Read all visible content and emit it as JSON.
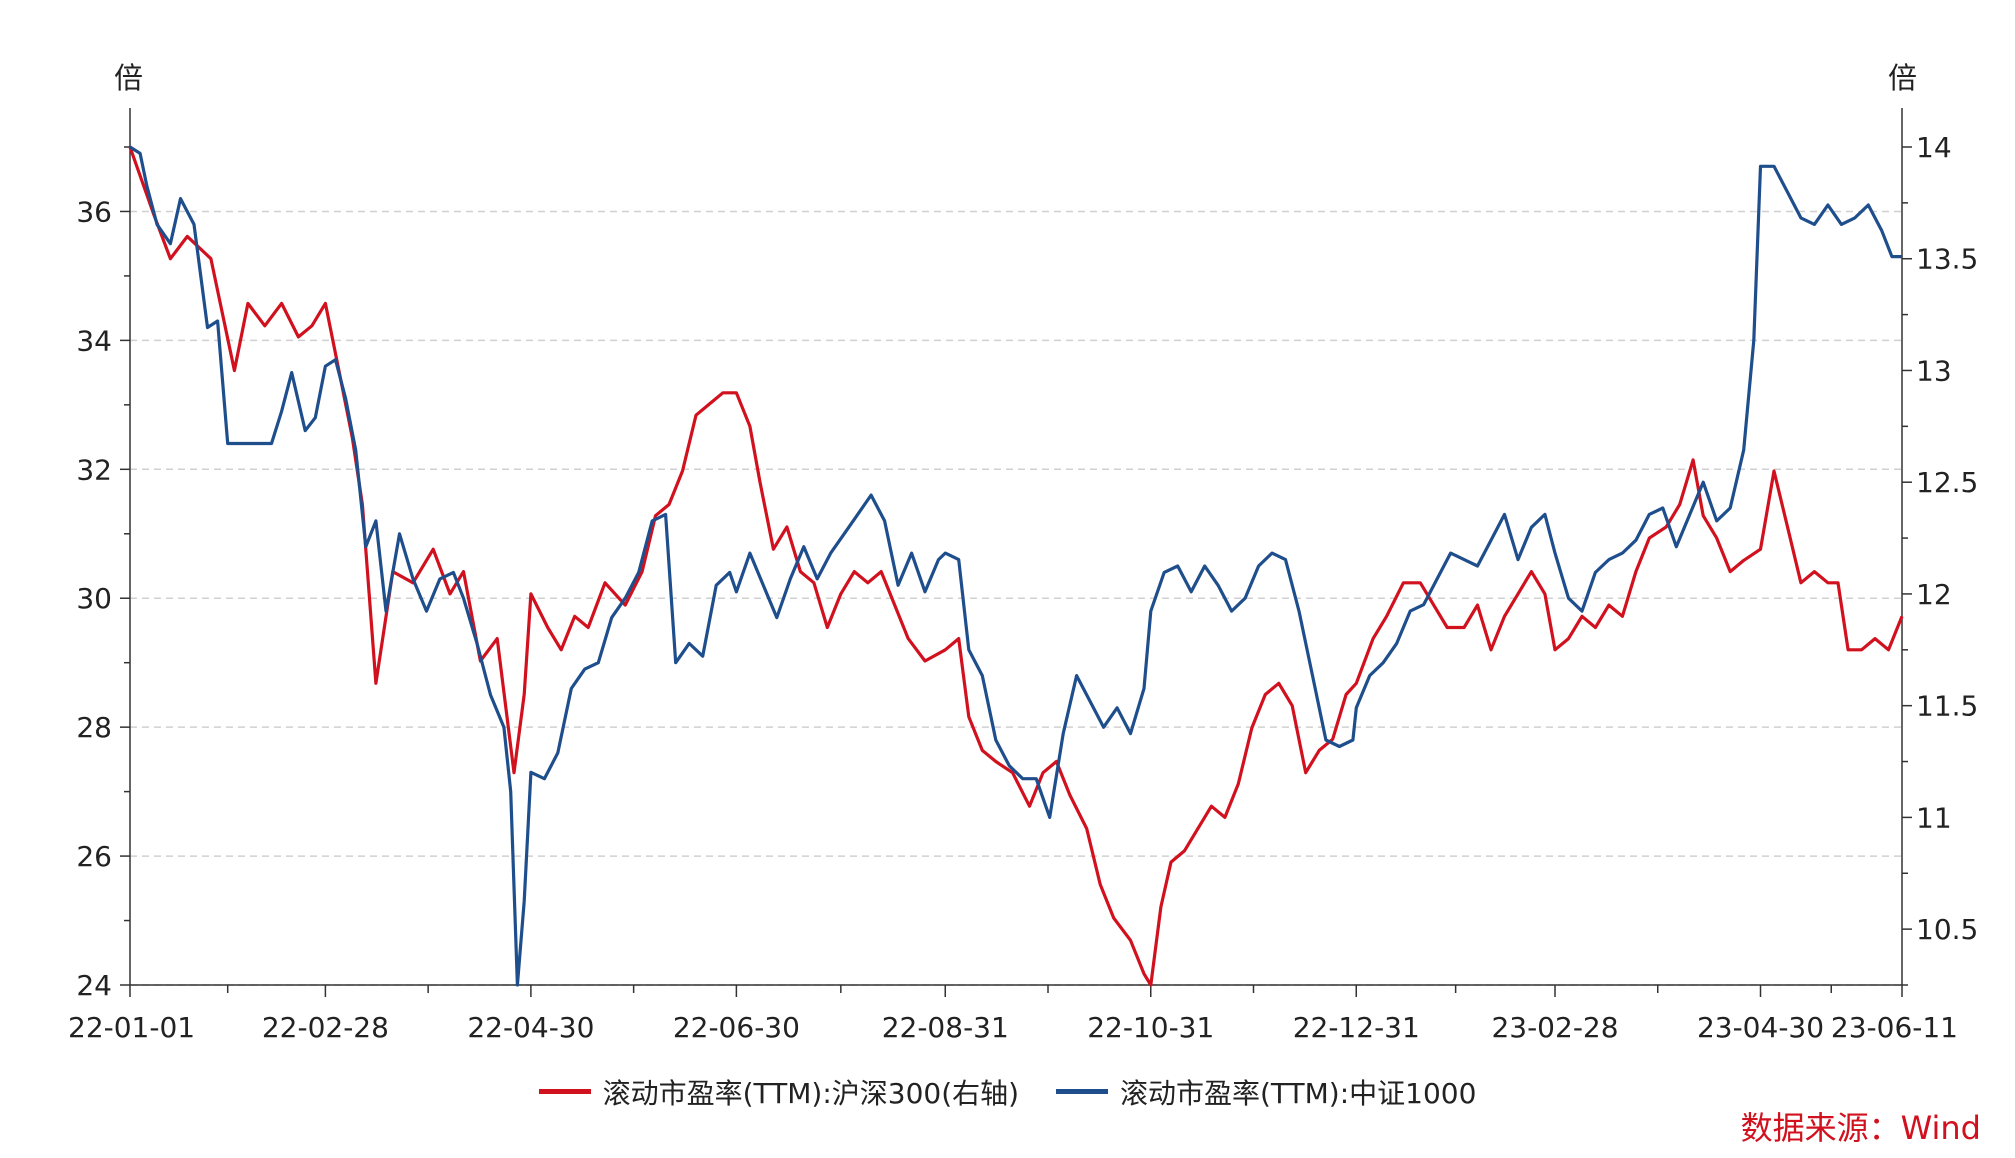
{
  "chart_data": {
    "type": "line",
    "left_axis_unit": "倍",
    "right_axis_unit": "倍",
    "x_ticks": [
      "22-01-01",
      "22-02-28",
      "22-04-30",
      "22-06-30",
      "22-08-31",
      "22-10-31",
      "22-12-31",
      "23-02-28",
      "23-04-30",
      "23-06-11"
    ],
    "ylim_left": [
      24,
      37
    ],
    "yticks_left": [
      24,
      26,
      28,
      30,
      32,
      34,
      36
    ],
    "ylim_right": [
      10.25,
      14
    ],
    "yticks_right": [
      "10.5",
      "11",
      "11.5",
      "12",
      "12.5",
      "13",
      "13.5",
      "14"
    ],
    "grid": "horizontal dashed",
    "legend_position": "bottom",
    "series": [
      {
        "name": "滚动市盈率(TTM):沪深300(右轴)",
        "axis": "right",
        "color": "#d2111f",
        "points": [
          [
            "22-01-01",
            14.0
          ],
          [
            "22-01-08",
            13.7
          ],
          [
            "22-01-13",
            13.5
          ],
          [
            "22-01-18",
            13.6
          ],
          [
            "22-01-25",
            13.5
          ],
          [
            "22-02-01",
            13.0
          ],
          [
            "22-02-05",
            13.3
          ],
          [
            "22-02-10",
            13.2
          ],
          [
            "22-02-15",
            13.3
          ],
          [
            "22-02-20",
            13.15
          ],
          [
            "22-02-24",
            13.2
          ],
          [
            "22-02-28",
            13.3
          ],
          [
            "22-03-04",
            13.0
          ],
          [
            "22-03-08",
            12.7
          ],
          [
            "22-03-11",
            12.4
          ],
          [
            "22-03-15",
            11.6
          ],
          [
            "22-03-20",
            12.1
          ],
          [
            "22-03-26",
            12.05
          ],
          [
            "22-04-01",
            12.2
          ],
          [
            "22-04-06",
            12.0
          ],
          [
            "22-04-10",
            12.1
          ],
          [
            "22-04-15",
            11.7
          ],
          [
            "22-04-20",
            11.8
          ],
          [
            "22-04-25",
            11.2
          ],
          [
            "22-04-28",
            11.55
          ],
          [
            "22-04-30",
            12.0
          ],
          [
            "22-05-05",
            11.85
          ],
          [
            "22-05-09",
            11.75
          ],
          [
            "22-05-13",
            11.9
          ],
          [
            "22-05-17",
            11.85
          ],
          [
            "22-05-22",
            12.05
          ],
          [
            "22-05-28",
            11.95
          ],
          [
            "22-06-02",
            12.1
          ],
          [
            "22-06-06",
            12.35
          ],
          [
            "22-06-10",
            12.4
          ],
          [
            "22-06-14",
            12.55
          ],
          [
            "22-06-18",
            12.8
          ],
          [
            "22-06-22",
            12.85
          ],
          [
            "22-06-26",
            12.9
          ],
          [
            "22-06-30",
            12.9
          ],
          [
            "22-07-04",
            12.75
          ],
          [
            "22-07-07",
            12.5
          ],
          [
            "22-07-11",
            12.2
          ],
          [
            "22-07-15",
            12.3
          ],
          [
            "22-07-19",
            12.1
          ],
          [
            "22-07-23",
            12.05
          ],
          [
            "22-07-27",
            11.85
          ],
          [
            "22-07-31",
            12.0
          ],
          [
            "22-08-04",
            12.1
          ],
          [
            "22-08-08",
            12.05
          ],
          [
            "22-08-12",
            12.1
          ],
          [
            "22-08-16",
            11.95
          ],
          [
            "22-08-20",
            11.8
          ],
          [
            "22-08-25",
            11.7
          ],
          [
            "22-08-31",
            11.75
          ],
          [
            "22-09-04",
            11.8
          ],
          [
            "22-09-07",
            11.45
          ],
          [
            "22-09-11",
            11.3
          ],
          [
            "22-09-15",
            11.25
          ],
          [
            "22-09-20",
            11.2
          ],
          [
            "22-09-25",
            11.05
          ],
          [
            "22-09-29",
            11.2
          ],
          [
            "22-10-03",
            11.25
          ],
          [
            "22-10-07",
            11.1
          ],
          [
            "22-10-12",
            10.95
          ],
          [
            "22-10-16",
            10.7
          ],
          [
            "22-10-20",
            10.55
          ],
          [
            "22-10-25",
            10.45
          ],
          [
            "22-10-29",
            10.3
          ],
          [
            "22-10-31",
            10.25
          ],
          [
            "22-11-03",
            10.6
          ],
          [
            "22-11-06",
            10.8
          ],
          [
            "22-11-10",
            10.85
          ],
          [
            "22-11-14",
            10.95
          ],
          [
            "22-11-18",
            11.05
          ],
          [
            "22-11-22",
            11.0
          ],
          [
            "22-11-26",
            11.15
          ],
          [
            "22-11-30",
            11.4
          ],
          [
            "22-12-04",
            11.55
          ],
          [
            "22-12-08",
            11.6
          ],
          [
            "22-12-12",
            11.5
          ],
          [
            "22-12-16",
            11.2
          ],
          [
            "22-12-20",
            11.3
          ],
          [
            "22-12-24",
            11.35
          ],
          [
            "22-12-28",
            11.55
          ],
          [
            "22-12-31",
            11.6
          ],
          [
            "23-01-05",
            11.8
          ],
          [
            "23-01-09",
            11.9
          ],
          [
            "23-01-14",
            12.05
          ],
          [
            "23-01-19",
            12.05
          ],
          [
            "23-01-23",
            11.95
          ],
          [
            "23-01-27",
            11.85
          ],
          [
            "23-02-01",
            11.85
          ],
          [
            "23-02-05",
            11.95
          ],
          [
            "23-02-09",
            11.75
          ],
          [
            "23-02-13",
            11.9
          ],
          [
            "23-02-17",
            12.0
          ],
          [
            "23-02-21",
            12.1
          ],
          [
            "23-02-25",
            12.0
          ],
          [
            "23-02-28",
            11.75
          ],
          [
            "23-03-04",
            11.8
          ],
          [
            "23-03-08",
            11.9
          ],
          [
            "23-03-12",
            11.85
          ],
          [
            "23-03-16",
            11.95
          ],
          [
            "23-03-20",
            11.9
          ],
          [
            "23-03-24",
            12.1
          ],
          [
            "23-03-28",
            12.25
          ],
          [
            "23-04-02",
            12.3
          ],
          [
            "23-04-06",
            12.4
          ],
          [
            "23-04-10",
            12.6
          ],
          [
            "23-04-13",
            12.35
          ],
          [
            "23-04-17",
            12.25
          ],
          [
            "23-04-21",
            12.1
          ],
          [
            "23-04-25",
            12.15
          ],
          [
            "23-04-30",
            12.2
          ],
          [
            "23-05-04",
            12.55
          ],
          [
            "23-05-08",
            12.3
          ],
          [
            "23-05-12",
            12.05
          ],
          [
            "23-05-16",
            12.1
          ],
          [
            "23-05-20",
            12.05
          ],
          [
            "23-05-23",
            12.05
          ],
          [
            "23-05-26",
            11.75
          ],
          [
            "23-05-30",
            11.75
          ],
          [
            "23-06-03",
            11.8
          ],
          [
            "23-06-07",
            11.75
          ],
          [
            "23-06-11",
            11.9
          ]
        ]
      },
      {
        "name": "滚动市盈率(TTM):中证1000",
        "axis": "left",
        "color": "#1f4e8c",
        "points": [
          [
            "22-01-01",
            37.0
          ],
          [
            "22-01-04",
            36.9
          ],
          [
            "22-01-06",
            36.4
          ],
          [
            "22-01-09",
            35.8
          ],
          [
            "22-01-13",
            35.5
          ],
          [
            "22-01-16",
            36.2
          ],
          [
            "22-01-20",
            35.8
          ],
          [
            "22-01-24",
            34.2
          ],
          [
            "22-01-27",
            34.3
          ],
          [
            "22-01-30",
            32.4
          ],
          [
            "22-02-03",
            32.4
          ],
          [
            "22-02-08",
            32.4
          ],
          [
            "22-02-12",
            32.4
          ],
          [
            "22-02-15",
            32.9
          ],
          [
            "22-02-18",
            33.5
          ],
          [
            "22-02-22",
            32.6
          ],
          [
            "22-02-25",
            32.8
          ],
          [
            "22-02-28",
            33.6
          ],
          [
            "22-03-03",
            33.7
          ],
          [
            "22-03-06",
            33.1
          ],
          [
            "22-03-09",
            32.3
          ],
          [
            "22-03-12",
            30.8
          ],
          [
            "22-03-15",
            31.2
          ],
          [
            "22-03-18",
            29.8
          ],
          [
            "22-03-22",
            31.0
          ],
          [
            "22-03-26",
            30.3
          ],
          [
            "22-03-30",
            29.8
          ],
          [
            "22-04-03",
            30.3
          ],
          [
            "22-04-07",
            30.4
          ],
          [
            "22-04-10",
            30.0
          ],
          [
            "22-04-14",
            29.3
          ],
          [
            "22-04-18",
            28.5
          ],
          [
            "22-04-22",
            28.0
          ],
          [
            "22-04-24",
            27.0
          ],
          [
            "22-04-26",
            24.0
          ],
          [
            "22-04-28",
            25.3
          ],
          [
            "22-04-30",
            27.3
          ],
          [
            "22-05-04",
            27.2
          ],
          [
            "22-05-08",
            27.6
          ],
          [
            "22-05-12",
            28.6
          ],
          [
            "22-05-16",
            28.9
          ],
          [
            "22-05-20",
            29.0
          ],
          [
            "22-05-24",
            29.7
          ],
          [
            "22-05-28",
            30.0
          ],
          [
            "22-06-01",
            30.4
          ],
          [
            "22-06-05",
            31.2
          ],
          [
            "22-06-09",
            31.3
          ],
          [
            "22-06-12",
            29.0
          ],
          [
            "22-06-16",
            29.3
          ],
          [
            "22-06-20",
            29.1
          ],
          [
            "22-06-24",
            30.2
          ],
          [
            "22-06-28",
            30.4
          ],
          [
            "22-06-30",
            30.1
          ],
          [
            "22-07-04",
            30.7
          ],
          [
            "22-07-08",
            30.2
          ],
          [
            "22-07-12",
            29.7
          ],
          [
            "22-07-16",
            30.3
          ],
          [
            "22-07-20",
            30.8
          ],
          [
            "22-07-24",
            30.3
          ],
          [
            "22-07-28",
            30.7
          ],
          [
            "22-08-01",
            31.0
          ],
          [
            "22-08-05",
            31.3
          ],
          [
            "22-08-09",
            31.6
          ],
          [
            "22-08-13",
            31.2
          ],
          [
            "22-08-17",
            30.2
          ],
          [
            "22-08-21",
            30.7
          ],
          [
            "22-08-25",
            30.1
          ],
          [
            "22-08-29",
            30.6
          ],
          [
            "22-08-31",
            30.7
          ],
          [
            "22-09-04",
            30.6
          ],
          [
            "22-09-07",
            29.2
          ],
          [
            "22-09-11",
            28.8
          ],
          [
            "22-09-15",
            27.8
          ],
          [
            "22-09-19",
            27.4
          ],
          [
            "22-09-23",
            27.2
          ],
          [
            "22-09-27",
            27.2
          ],
          [
            "22-10-01",
            26.6
          ],
          [
            "22-10-05",
            27.9
          ],
          [
            "22-10-09",
            28.8
          ],
          [
            "22-10-13",
            28.4
          ],
          [
            "22-10-17",
            28.0
          ],
          [
            "22-10-21",
            28.3
          ],
          [
            "22-10-25",
            27.9
          ],
          [
            "22-10-29",
            28.6
          ],
          [
            "22-10-31",
            29.8
          ],
          [
            "22-11-04",
            30.4
          ],
          [
            "22-11-08",
            30.5
          ],
          [
            "22-11-12",
            30.1
          ],
          [
            "22-11-16",
            30.5
          ],
          [
            "22-11-20",
            30.2
          ],
          [
            "22-11-24",
            29.8
          ],
          [
            "22-11-28",
            30.0
          ],
          [
            "22-12-02",
            30.5
          ],
          [
            "22-12-06",
            30.7
          ],
          [
            "22-12-10",
            30.6
          ],
          [
            "22-12-14",
            29.8
          ],
          [
            "22-12-18",
            28.8
          ],
          [
            "22-12-22",
            27.8
          ],
          [
            "22-12-26",
            27.7
          ],
          [
            "22-12-30",
            27.8
          ],
          [
            "22-12-31",
            28.3
          ],
          [
            "23-01-04",
            28.8
          ],
          [
            "23-01-08",
            29.0
          ],
          [
            "23-01-12",
            29.3
          ],
          [
            "23-01-16",
            29.8
          ],
          [
            "23-01-20",
            29.9
          ],
          [
            "23-01-24",
            30.3
          ],
          [
            "23-01-28",
            30.7
          ],
          [
            "23-02-01",
            30.6
          ],
          [
            "23-02-05",
            30.5
          ],
          [
            "23-02-09",
            30.9
          ],
          [
            "23-02-13",
            31.3
          ],
          [
            "23-02-17",
            30.6
          ],
          [
            "23-02-21",
            31.1
          ],
          [
            "23-02-25",
            31.3
          ],
          [
            "23-02-28",
            30.7
          ],
          [
            "23-03-04",
            30.0
          ],
          [
            "23-03-08",
            29.8
          ],
          [
            "23-03-12",
            30.4
          ],
          [
            "23-03-16",
            30.6
          ],
          [
            "23-03-20",
            30.7
          ],
          [
            "23-03-24",
            30.9
          ],
          [
            "23-03-28",
            31.3
          ],
          [
            "23-04-01",
            31.4
          ],
          [
            "23-04-05",
            30.8
          ],
          [
            "23-04-09",
            31.3
          ],
          [
            "23-04-13",
            31.8
          ],
          [
            "23-04-17",
            31.2
          ],
          [
            "23-04-21",
            31.4
          ],
          [
            "23-04-25",
            32.3
          ],
          [
            "23-04-28",
            34.0
          ],
          [
            "23-04-30",
            36.7
          ],
          [
            "23-05-04",
            36.7
          ],
          [
            "23-05-08",
            36.3
          ],
          [
            "23-05-12",
            35.9
          ],
          [
            "23-05-16",
            35.8
          ],
          [
            "23-05-20",
            36.1
          ],
          [
            "23-05-24",
            35.8
          ],
          [
            "23-05-28",
            35.9
          ],
          [
            "23-06-01",
            36.1
          ],
          [
            "23-06-05",
            35.7
          ],
          [
            "23-06-08",
            35.3
          ],
          [
            "23-06-11",
            35.3
          ]
        ]
      }
    ]
  },
  "source_label": "数据来源：Wind"
}
